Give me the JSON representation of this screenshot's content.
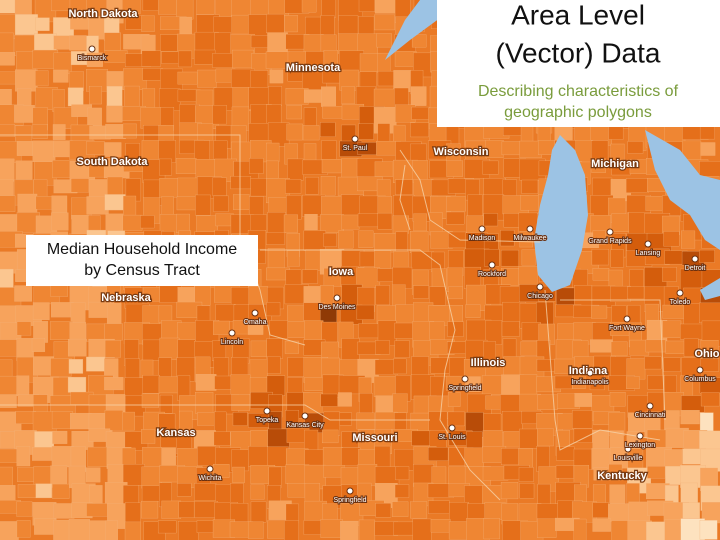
{
  "title_box": {
    "title_lines": [
      "Area Level",
      "(Vector) Data"
    ],
    "subtitle_lines": [
      "Describing characteristics of",
      "geographic polygons"
    ]
  },
  "legend_box": {
    "lines": [
      "Median Household Income",
      "by Census Tract"
    ]
  },
  "states": [
    "North Dakota",
    "Minnesota",
    "South Dakota",
    "Wisconsin",
    "Michigan",
    "Iowa",
    "Nebraska",
    "Illinois",
    "Indiana",
    "Ohio",
    "Kansas",
    "Missouri",
    "Kentucky"
  ],
  "cities": [
    "Bismarck",
    "St. Paul",
    "Madison",
    "Milwaukee",
    "Grand Rapids",
    "Lansing",
    "Detroit",
    "Rockford",
    "Chicago",
    "Toledo",
    "Fort Wayne",
    "Columbus",
    "Des Moines",
    "Omaha",
    "Lincoln",
    "Springfield",
    "Indianapolis",
    "Cincinnati",
    "Topeka",
    "Kansas City",
    "St. Louis",
    "Louisville",
    "Lexington",
    "Wichita",
    "Springfield"
  ]
}
